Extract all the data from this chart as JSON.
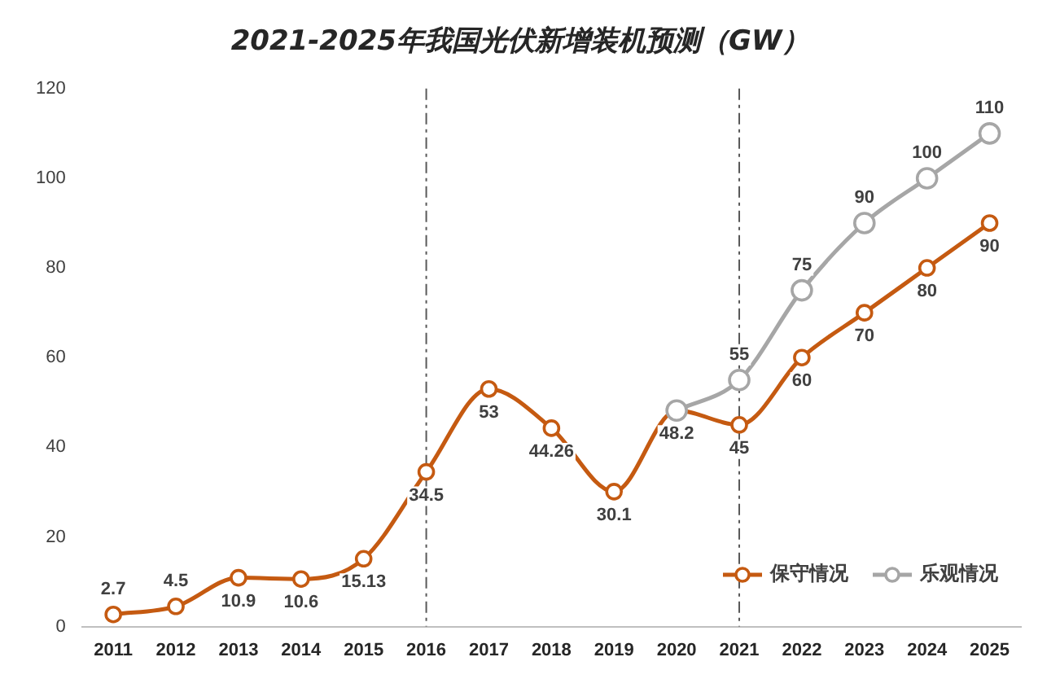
{
  "chart_data": {
    "type": "line",
    "title": "2021-2025年我国光伏新增装机预测（GW）",
    "categories": [
      "2011",
      "2012",
      "2013",
      "2014",
      "2015",
      "2016",
      "2017",
      "2018",
      "2019",
      "2020",
      "2021",
      "2022",
      "2023",
      "2024",
      "2025"
    ],
    "series": [
      {
        "name": "保守情况",
        "color": "#c55a11",
        "values": [
          2.7,
          4.5,
          10.9,
          10.6,
          15.13,
          34.5,
          53,
          44.26,
          30.1,
          48.2,
          45,
          60,
          70,
          80,
          90
        ],
        "value_labels": [
          "2.7",
          "4.5",
          "10.9",
          "10.6",
          "15.13",
          "34.5",
          "53",
          "44.26",
          "30.1",
          "48.2",
          "45",
          "60",
          "70",
          "80",
          "90"
        ]
      },
      {
        "name": "乐观情况",
        "color": "#a6a6a6",
        "values": [
          null,
          null,
          null,
          null,
          null,
          null,
          null,
          null,
          null,
          48.2,
          55,
          75,
          90,
          100,
          110
        ],
        "value_labels": [
          null,
          null,
          null,
          null,
          null,
          null,
          null,
          null,
          null,
          null,
          "55",
          "75",
          "90",
          "100",
          "110"
        ]
      }
    ],
    "ylim": [
      0,
      120
    ],
    "yticks": [
      0,
      20,
      40,
      60,
      80,
      100,
      120
    ],
    "grid": false,
    "legend": "bottom right",
    "marker": "circle",
    "line_style": "solid",
    "ref_lines": [
      {
        "axis": "x",
        "value": "2016",
        "color": "#595959",
        "line_style": "dashdot"
      },
      {
        "axis": "x",
        "value": "2021",
        "color": "#595959",
        "line_style": "dashdot"
      }
    ]
  }
}
